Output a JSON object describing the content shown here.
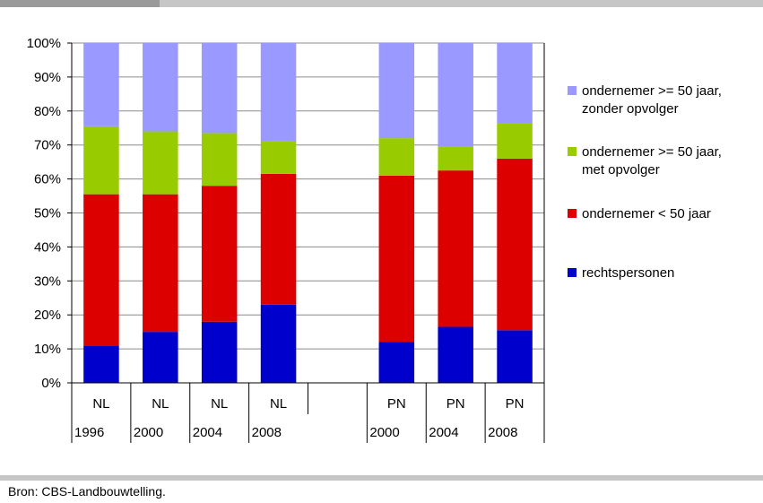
{
  "source_note": "Bron: CBS-Landbouwtelling.",
  "chart_data": {
    "type": "bar",
    "stacked": true,
    "percent": true,
    "ylim": [
      0,
      100
    ],
    "yticks": [
      "0%",
      "10%",
      "20%",
      "30%",
      "40%",
      "50%",
      "60%",
      "70%",
      "80%",
      "90%",
      "100%"
    ],
    "grid": true,
    "legend_position": "right",
    "categories": [
      {
        "region": "NL",
        "year": "1996"
      },
      {
        "region": "NL",
        "year": "2000"
      },
      {
        "region": "NL",
        "year": "2004"
      },
      {
        "region": "NL",
        "year": "2008"
      },
      {
        "region": "",
        "year": ""
      },
      {
        "region": "PN",
        "year": "2000"
      },
      {
        "region": "PN",
        "year": "2004"
      },
      {
        "region": "PN",
        "year": "2008"
      }
    ],
    "series": [
      {
        "name": "rechtspersonen",
        "color": "#0000cc",
        "values": [
          11,
          15,
          18,
          23,
          null,
          12,
          16.5,
          15.5
        ]
      },
      {
        "name": "ondernemer < 50 jaar",
        "color": "#dd0000",
        "values": [
          44.5,
          40.5,
          40,
          38.5,
          null,
          49,
          46,
          50.5
        ]
      },
      {
        "name": "ondernemer >= 50 jaar, met opvolger",
        "color": "#99cc00",
        "values": [
          20,
          18.5,
          15.5,
          9.5,
          null,
          11,
          7,
          10.5
        ]
      },
      {
        "name": "ondernemer >= 50 jaar, zonder opvolger",
        "color": "#9999ff",
        "values": [
          24.5,
          26,
          26.5,
          29,
          null,
          28,
          30.5,
          23.5
        ]
      }
    ],
    "legend": [
      {
        "lines": [
          "ondernemer >= 50 jaar,",
          "zonder opvolger"
        ],
        "color": "#9999ff"
      },
      {
        "lines": [
          "ondernemer >= 50 jaar,",
          "met opvolger"
        ],
        "color": "#99cc00"
      },
      {
        "lines": [
          "ondernemer < 50 jaar"
        ],
        "color": "#dd0000"
      },
      {
        "lines": [
          "rechtspersonen"
        ],
        "color": "#0000cc"
      }
    ]
  }
}
